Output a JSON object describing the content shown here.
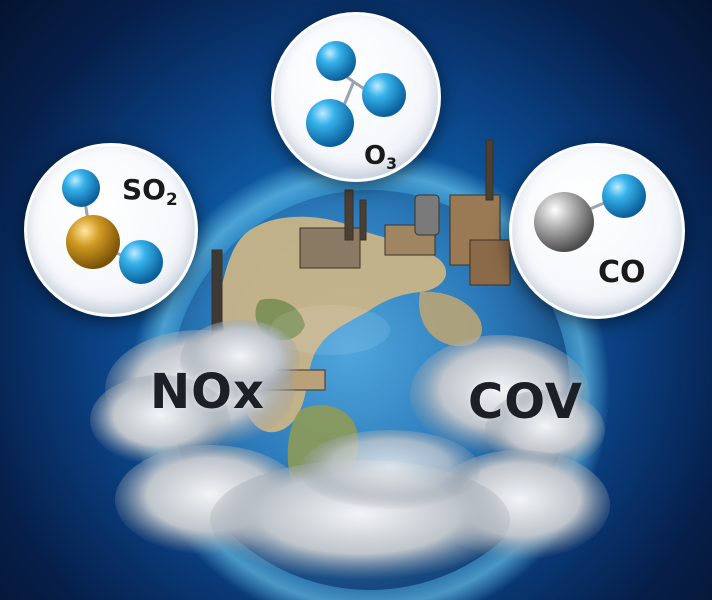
{
  "molecules": {
    "so2": {
      "base": "SO",
      "sub": "2"
    },
    "o3": {
      "base": "O",
      "sub": "3"
    },
    "co": {
      "text": "CO"
    }
  },
  "pollutants": {
    "nox": "NOx",
    "cov": "COV"
  },
  "colors": {
    "background_center": "#1f8fd6",
    "background_edge": "#04142f",
    "atom_oxygen": "#1aa3e0",
    "atom_sulfur": "#c8901a",
    "atom_carbon": "#9a9a9a",
    "ocean": "#2a78b8",
    "land": "#c9b487",
    "smoke": "#d9dde2"
  },
  "icons": [
    "earth-globe",
    "factory-silhouette",
    "smoke-cloud",
    "molecule-so2",
    "molecule-o3",
    "molecule-co"
  ]
}
